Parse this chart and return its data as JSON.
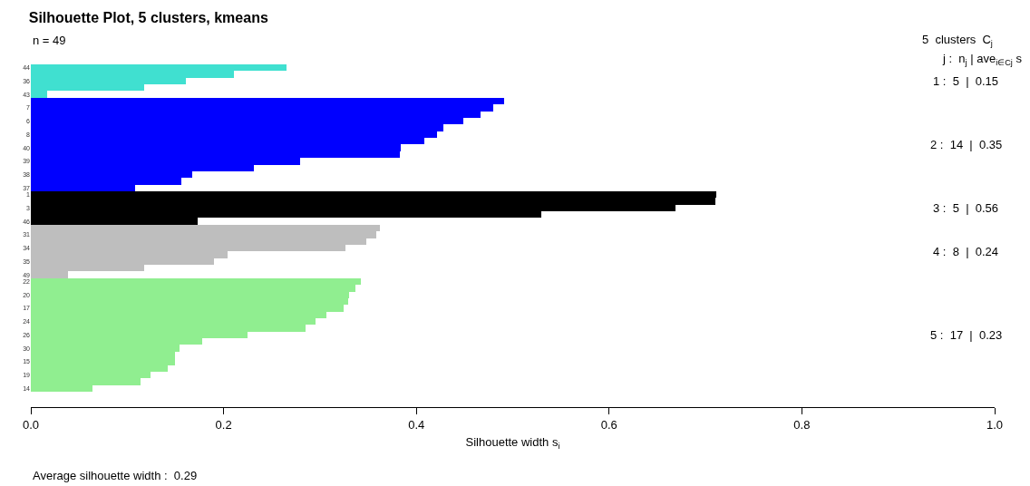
{
  "chart_data": {
    "type": "bar",
    "orientation": "horizontal",
    "title": "Silhouette Plot, 5 clusters, kmeans",
    "subtitle": "n = 49",
    "xlabel": "Silhouette width s$_{i}$",
    "categories": [
      "44",
      null,
      "36",
      null,
      "43",
      null,
      "7",
      null,
      "6",
      null,
      "8",
      null,
      "40",
      null,
      "39",
      null,
      "38",
      null,
      "37",
      "1",
      null,
      "3",
      null,
      "46",
      null,
      "31",
      null,
      "34",
      null,
      "35",
      null,
      "49",
      "22",
      null,
      "20",
      null,
      "17",
      null,
      "24",
      null,
      "26",
      null,
      "30",
      null,
      "15",
      null,
      "19",
      null,
      "14"
    ],
    "values": [
      0.265,
      0.211,
      0.161,
      0.118,
      0.017,
      0.491,
      0.48,
      0.467,
      0.449,
      0.428,
      0.421,
      0.408,
      0.384,
      0.383,
      0.279,
      0.231,
      0.167,
      0.156,
      0.108,
      0.711,
      0.71,
      0.669,
      0.53,
      0.173,
      0.362,
      0.358,
      0.348,
      0.326,
      0.204,
      0.19,
      0.118,
      0.039,
      0.342,
      0.337,
      0.33,
      0.329,
      0.325,
      0.307,
      0.295,
      0.285,
      0.225,
      0.178,
      0.154,
      0.15,
      0.15,
      0.142,
      0.124,
      0.114,
      0.064
    ],
    "colors": [
      "#40e0d0",
      "#40e0d0",
      "#40e0d0",
      "#40e0d0",
      "#40e0d0",
      "#0000ff",
      "#0000ff",
      "#0000ff",
      "#0000ff",
      "#0000ff",
      "#0000ff",
      "#0000ff",
      "#0000ff",
      "#0000ff",
      "#0000ff",
      "#0000ff",
      "#0000ff",
      "#0000ff",
      "#0000ff",
      "#000000",
      "#000000",
      "#000000",
      "#000000",
      "#000000",
      "#bebebe",
      "#bebebe",
      "#bebebe",
      "#bebebe",
      "#bebebe",
      "#bebebe",
      "#bebebe",
      "#bebebe",
      "#90ee90",
      "#90ee90",
      "#90ee90",
      "#90ee90",
      "#90ee90",
      "#90ee90",
      "#90ee90",
      "#90ee90",
      "#90ee90",
      "#90ee90",
      "#90ee90",
      "#90ee90",
      "#90ee90",
      "#90ee90",
      "#90ee90",
      "#90ee90",
      "#90ee90"
    ],
    "xlim": [
      0,
      1
    ],
    "xticks": [
      {
        "value": 0,
        "label": "0.0"
      },
      0.2,
      0.4,
      0.6,
      0.8,
      {
        "value": 1,
        "label": "1.0"
      }
    ],
    "annotations": [
      "5  clusters  C$_{j}$",
      "j :  n$_{j}$ | ave$_{i∈Cj}$ s",
      "1 :  5  |  0.15",
      "2 :  14  |  0.35",
      "3 :  5  |  0.56",
      "4 :  8  |  0.24",
      "5 :  17  |  0.23",
      "Average silhouette width :  0.29"
    ]
  }
}
